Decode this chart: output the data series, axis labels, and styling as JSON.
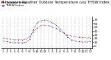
{
  "title": "Milwaukee Weather Outdoor Temperature (vs) THSW Index per Hour (Last 24 Hours)",
  "title_fontsize": 3.8,
  "x_labels": [
    "1",
    "2",
    "3",
    "4",
    "5",
    "6",
    "7",
    "8",
    "9",
    "10",
    "11",
    "12",
    "1",
    "2",
    "3",
    "4",
    "5",
    "6",
    "7",
    "8",
    "9",
    "10",
    "11",
    "12"
  ],
  "x_label_fontsize": 3.2,
  "y_ticks": [
    0,
    10,
    20,
    30,
    40,
    50,
    60,
    70
  ],
  "y_tick_labels": [
    "0",
    "10",
    "20",
    "30",
    "40",
    "50",
    "60",
    "70"
  ],
  "y_tick_fontsize": 3.2,
  "ylim": [
    -5,
    78
  ],
  "xlim": [
    -0.5,
    23.5
  ],
  "background_color": "#ffffff",
  "grid_color": "#999999",
  "temp_color": "#cc0000",
  "thsw_color": "#0000cc",
  "temp_values": [
    22,
    20,
    18,
    17,
    17,
    17,
    18,
    25,
    38,
    48,
    54,
    56,
    54,
    51,
    47,
    41,
    35,
    30,
    27,
    25,
    24,
    23,
    22,
    22
  ],
  "thsw_values": [
    14,
    12,
    10,
    9,
    9,
    9,
    10,
    18,
    44,
    62,
    67,
    70,
    67,
    62,
    56,
    46,
    36,
    24,
    17,
    14,
    12,
    11,
    11,
    12
  ],
  "legend_temp": "Outdoor Temp",
  "legend_thsw": "THSW Index",
  "legend_fontsize": 3.2,
  "dot_size": 1.2,
  "line_width": 0.6
}
